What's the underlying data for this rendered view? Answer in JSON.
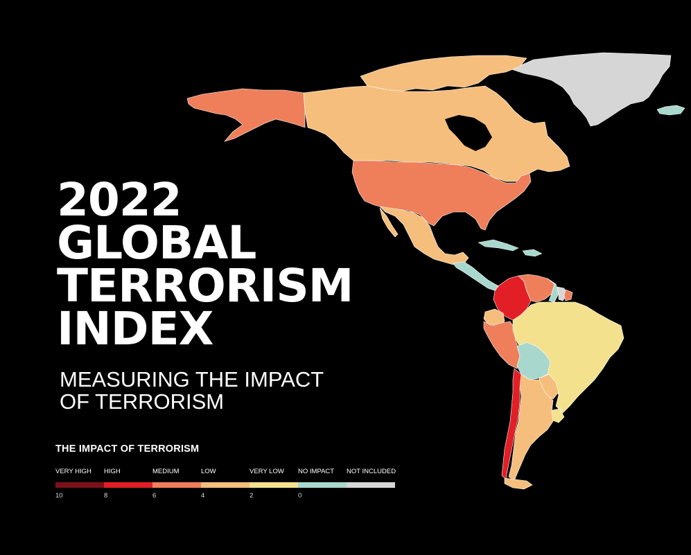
{
  "title_lines": [
    "2022",
    "GLOBAL",
    "TERRORISM",
    "INDEX"
  ],
  "subtitle_lines": [
    "MEASURING THE IMPACT",
    "OF TERRORISM"
  ],
  "legend": {
    "title": "THE IMPACT OF TERRORISM",
    "categories": [
      {
        "label": "VERY HIGH",
        "color": "#7a1119"
      },
      {
        "label": "HIGH",
        "color": "#e21f26"
      },
      {
        "label": "MEDIUM",
        "color": "#ef7f5a"
      },
      {
        "label": "LOW",
        "color": "#f6be7c"
      },
      {
        "label": "VERY LOW",
        "color": "#f3e18e"
      },
      {
        "label": "NO IMPACT",
        "color": "#a8d8cd"
      },
      {
        "label": "NOT INCLUDED",
        "color": "#d6d6d6"
      }
    ],
    "ticks": [
      "10",
      "8",
      "6",
      "4",
      "2",
      "0"
    ]
  },
  "regions": [
    {
      "name": "Alaska",
      "level": "MEDIUM"
    },
    {
      "name": "Canada",
      "level": "LOW"
    },
    {
      "name": "Greenland",
      "level": "NOT INCLUDED"
    },
    {
      "name": "Iceland",
      "level": "NO IMPACT"
    },
    {
      "name": "United States",
      "level": "MEDIUM"
    },
    {
      "name": "Mexico",
      "level": "LOW"
    },
    {
      "name": "Central America",
      "level": "NO IMPACT"
    },
    {
      "name": "Colombia",
      "level": "HIGH"
    },
    {
      "name": "Venezuela",
      "level": "MEDIUM"
    },
    {
      "name": "Guyana",
      "level": "NO IMPACT"
    },
    {
      "name": "Suriname",
      "level": "NOT INCLUDED"
    },
    {
      "name": "Ecuador",
      "level": "LOW"
    },
    {
      "name": "Peru",
      "level": "MEDIUM"
    },
    {
      "name": "Brazil",
      "level": "VERY LOW"
    },
    {
      "name": "Bolivia",
      "level": "NO IMPACT"
    },
    {
      "name": "Paraguay",
      "level": "LOW"
    },
    {
      "name": "Chile",
      "level": "HIGH"
    },
    {
      "name": "Argentina",
      "level": "LOW"
    },
    {
      "name": "Uruguay",
      "level": "VERY LOW"
    }
  ]
}
